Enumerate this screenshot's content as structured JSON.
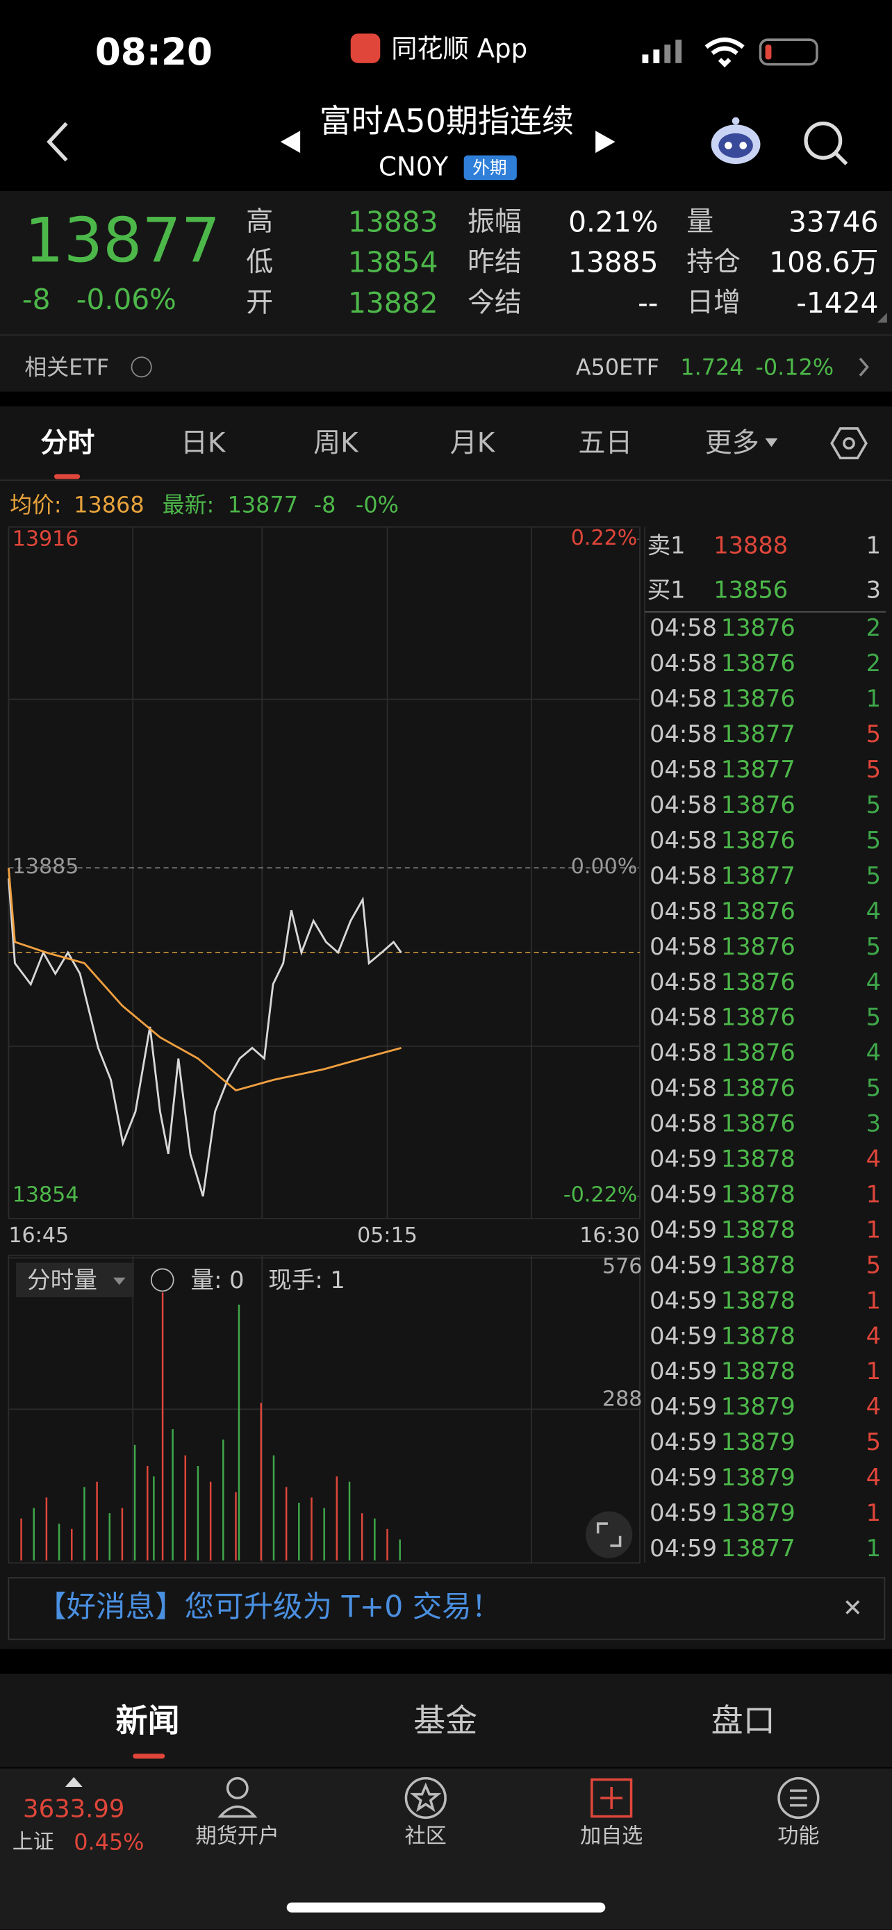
{
  "status": {
    "time": "08:20",
    "app": "同花顺 App"
  },
  "header": {
    "title": "富时A50期指连续",
    "code": "CN0Y",
    "tag": "外期"
  },
  "quote": {
    "price": 13877,
    "change": "-8",
    "pct": "-0.06%",
    "stats": [
      [
        {
          "label": "高",
          "value": 13883
        },
        {
          "label": "低",
          "value": 13854
        },
        {
          "label": "开",
          "value": 13882
        }
      ],
      [
        {
          "label": "振幅",
          "value": "0.21%"
        },
        {
          "label": "昨结",
          "value": 13885
        },
        {
          "label": "今结",
          "value": "--"
        }
      ],
      [
        {
          "label": "量",
          "value": 33746
        },
        {
          "label": "持仓",
          "value": "108.6万"
        },
        {
          "label": "日增",
          "value": "-1424"
        }
      ]
    ]
  },
  "etf": {
    "label": "相关ETF",
    "name": "A50ETF",
    "price": "1.724",
    "pct": "-0.12%"
  },
  "tabs": [
    "分时",
    "日K",
    "周K",
    "月K",
    "五日",
    "更多"
  ],
  "info": {
    "avg_label": "均价:",
    "avg": 13868,
    "last_label": "最新:",
    "last": 13877,
    "change": "-8",
    "pct": "-0%"
  },
  "chart_data": [
    {
      "type": "line",
      "ylim": [
        13854,
        13916
      ],
      "yticks": [
        13916,
        13885,
        13854
      ],
      "y2lim": [
        -0.22,
        0.22
      ],
      "y2ticks": [
        {
          "value": 0.22,
          "label": "0.22%"
        },
        {
          "value": 0,
          "label": "0.00%"
        },
        {
          "value": -0.22,
          "label": "-0.22%"
        }
      ],
      "xlim": [
        0,
        100
      ],
      "xticks": [
        {
          "value": 0,
          "label": "16:45"
        },
        {
          "value": 60,
          "label": "05:15"
        },
        {
          "value": 100,
          "label": "16:30"
        }
      ],
      "series": [
        {
          "color": "#d8d8d8",
          "x": [
            0,
            1,
            3.5,
            5.5,
            7.4,
            9.4,
            11.3,
            14.2,
            16.2,
            18.1,
            20.1,
            22.4,
            24,
            25.3,
            26.9,
            28.8,
            30.8,
            32.7,
            34.7,
            36.6,
            38.6,
            40.5,
            41.9,
            43.5,
            44.8,
            46.4,
            48.3,
            50.3,
            52.2,
            54.2,
            56.1,
            57.1,
            59.1,
            61,
            62.2
          ],
          "values": [
            13884,
            13876,
            13874,
            13877,
            13875,
            13877,
            13875,
            13868,
            13865,
            13859,
            13862,
            13870,
            13862,
            13858,
            13867,
            13858,
            13854,
            13862,
            13865,
            13867,
            13868,
            13867,
            13874,
            13876,
            13881,
            13877,
            13880,
            13878,
            13877,
            13880,
            13882,
            13876,
            13877,
            13878,
            13877
          ]
        },
        {
          "color": "#f0a040",
          "x": [
            0,
            1,
            6,
            12,
            18,
            24,
            30,
            36,
            42,
            50,
            56,
            62.2
          ],
          "values": [
            13885,
            13878,
            13877,
            13876,
            13872,
            13869,
            13867,
            13864,
            13865,
            13866,
            13867,
            13868
          ]
        }
      ]
    },
    {
      "type": "bar",
      "title": "分时量",
      "ylim": [
        0,
        576
      ],
      "yticks": [
        288,
        576
      ],
      "xlim": [
        0,
        100
      ],
      "volume_label": "量: 0",
      "hand_label": "现手: 1",
      "series": [
        {
          "color": "#e0463a",
          "x": [
            2,
            6,
            10,
            14,
            18,
            22,
            24.4,
            28,
            32,
            36,
            40,
            44,
            48,
            52,
            56,
            60
          ],
          "values": [
            80,
            120,
            60,
            150,
            100,
            180,
            510,
            200,
            150,
            130,
            300,
            140,
            120,
            160,
            90,
            60
          ]
        },
        {
          "color": "#3fa84a",
          "x": [
            4,
            8,
            12,
            16,
            20,
            23,
            26,
            30,
            34,
            36.5,
            42,
            46,
            50,
            54,
            58,
            62
          ],
          "values": [
            100,
            70,
            140,
            90,
            220,
            160,
            250,
            180,
            230,
            487,
            200,
            110,
            100,
            150,
            80,
            40
          ]
        }
      ]
    }
  ],
  "book": [
    {
      "label": "卖1",
      "price": 13888,
      "qty": 1
    },
    {
      "label": "买1",
      "price": 13856,
      "qty": 3
    }
  ],
  "trades": [
    {
      "time": "04:58",
      "price": 13876,
      "qty": 2,
      "color": "#3fa84a"
    },
    {
      "time": "04:58",
      "price": 13876,
      "qty": 2,
      "color": "#3fa84a"
    },
    {
      "time": "04:58",
      "price": 13876,
      "qty": 1,
      "color": "#3fa84a"
    },
    {
      "time": "04:58",
      "price": 13877,
      "qty": 5,
      "color": "#e0463a"
    },
    {
      "time": "04:58",
      "price": 13877,
      "qty": 5,
      "color": "#e0463a"
    },
    {
      "time": "04:58",
      "price": 13876,
      "qty": 5,
      "color": "#3fa84a"
    },
    {
      "time": "04:58",
      "price": 13876,
      "qty": 5,
      "color": "#3fa84a"
    },
    {
      "time": "04:58",
      "price": 13877,
      "qty": 5,
      "color": "#3fa84a"
    },
    {
      "time": "04:58",
      "price": 13876,
      "qty": 4,
      "color": "#3fa84a"
    },
    {
      "time": "04:58",
      "price": 13876,
      "qty": 5,
      "color": "#3fa84a"
    },
    {
      "time": "04:58",
      "price": 13876,
      "qty": 4,
      "color": "#3fa84a"
    },
    {
      "time": "04:58",
      "price": 13876,
      "qty": 5,
      "color": "#3fa84a"
    },
    {
      "time": "04:58",
      "price": 13876,
      "qty": 4,
      "color": "#3fa84a"
    },
    {
      "time": "04:58",
      "price": 13876,
      "qty": 5,
      "color": "#3fa84a"
    },
    {
      "time": "04:58",
      "price": 13876,
      "qty": 3,
      "color": "#3fa84a"
    },
    {
      "time": "04:59",
      "price": 13878,
      "qty": 4,
      "color": "#e0463a"
    },
    {
      "time": "04:59",
      "price": 13878,
      "qty": 1,
      "color": "#e0463a"
    },
    {
      "time": "04:59",
      "price": 13878,
      "qty": 1,
      "color": "#e0463a"
    },
    {
      "time": "04:59",
      "price": 13878,
      "qty": 5,
      "color": "#e0463a"
    },
    {
      "time": "04:59",
      "price": 13878,
      "qty": 1,
      "color": "#e0463a"
    },
    {
      "time": "04:59",
      "price": 13878,
      "qty": 4,
      "color": "#e0463a"
    },
    {
      "time": "04:59",
      "price": 13878,
      "qty": 1,
      "color": "#e0463a"
    },
    {
      "time": "04:59",
      "price": 13879,
      "qty": 4,
      "color": "#e0463a"
    },
    {
      "time": "04:59",
      "price": 13879,
      "qty": 5,
      "color": "#e0463a"
    },
    {
      "time": "04:59",
      "price": 13879,
      "qty": 4,
      "color": "#e0463a"
    },
    {
      "time": "04:59",
      "price": 13879,
      "qty": 1,
      "color": "#e0463a"
    },
    {
      "time": "04:59",
      "price": 13877,
      "qty": 1,
      "color": "#3fa84a"
    }
  ],
  "banner": "【好消息】您可升级为 T+0 交易！",
  "bottom_tabs": [
    "新闻",
    "基金",
    "盘口"
  ],
  "nav": {
    "index_value": "3633.99",
    "index_name": "上证",
    "index_pct": "0.45%",
    "items": [
      "期货开户",
      "社区",
      "加自选",
      "功能"
    ]
  }
}
